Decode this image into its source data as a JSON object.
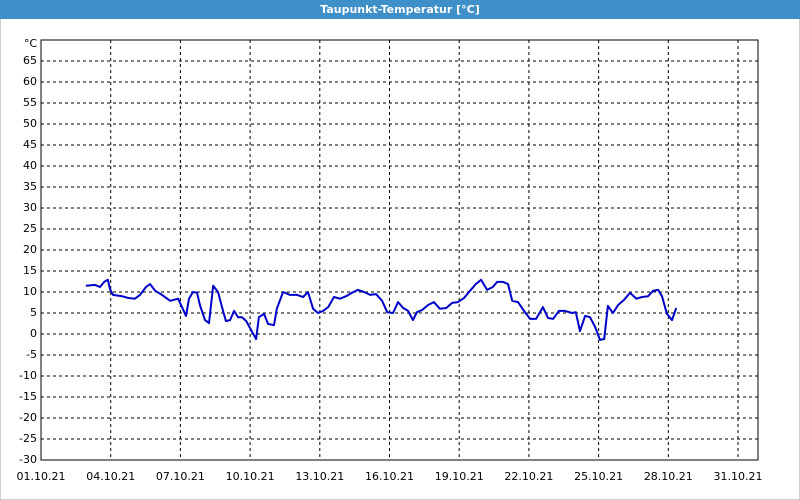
{
  "chart_data": {
    "type": "line",
    "title": "Taupunkt-Temperatur [°C]",
    "xlim": [
      1,
      31.86
    ],
    "ylim": [
      -30,
      70
    ],
    "xticks": [
      {
        "value": 1,
        "label": "01.10.21"
      },
      {
        "value": 4,
        "label": "04.10.21"
      },
      {
        "value": 7,
        "label": "07.10.21"
      },
      {
        "value": 10,
        "label": "10.10.21"
      },
      {
        "value": 13,
        "label": "13.10.21"
      },
      {
        "value": 16,
        "label": "16.10.21"
      },
      {
        "value": 19,
        "label": "19.10.21"
      },
      {
        "value": 22,
        "label": "22.10.21"
      },
      {
        "value": 25,
        "label": "25.10.21"
      },
      {
        "value": 28,
        "label": "28.10.21"
      },
      {
        "value": 31,
        "label": "31.10.21"
      }
    ],
    "yticks": [
      -30,
      -25,
      -20,
      -15,
      -10,
      -5,
      0,
      5,
      10,
      15,
      20,
      25,
      30,
      35,
      40,
      45,
      50,
      55,
      60,
      65,
      {
        "value": 70,
        "label": "°C"
      }
    ],
    "grid": true,
    "series": [
      {
        "name": "Taupunkt",
        "color": "#0000c8",
        "x": [
          2.93,
          3.33,
          3.54,
          3.72,
          3.88,
          3.97,
          4.1,
          4.49,
          4.74,
          5.04,
          5.26,
          5.52,
          5.69,
          5.91,
          6.21,
          6.56,
          6.9,
          7.07,
          7.24,
          7.37,
          7.54,
          7.72,
          7.84,
          8.06,
          8.23,
          8.41,
          8.62,
          8.79,
          8.96,
          9.14,
          9.31,
          9.48,
          9.65,
          9.83,
          10.04,
          10.26,
          10.38,
          10.6,
          10.77,
          11.03,
          11.15,
          11.42,
          11.72,
          12.02,
          12.28,
          12.49,
          12.71,
          12.92,
          13.14,
          13.36,
          13.61,
          13.87,
          14.13,
          14.38,
          14.64,
          14.9,
          15.17,
          15.42,
          15.68,
          15.9,
          16.15,
          16.37,
          16.59,
          16.8,
          17.01,
          17.18,
          17.4,
          17.66,
          17.91,
          18.17,
          18.44,
          18.7,
          18.95,
          19.21,
          19.47,
          19.72,
          19.94,
          20.2,
          20.45,
          20.63,
          20.89,
          21.1,
          21.28,
          21.53,
          21.79,
          22.05,
          22.31,
          22.6,
          22.82,
          23.04,
          23.29,
          23.55,
          23.86,
          24.02,
          24.2,
          24.42,
          24.63,
          24.85,
          25.06,
          25.24,
          25.4,
          25.62,
          25.84,
          26.09,
          26.35,
          26.62,
          26.87,
          27.13,
          27.35,
          27.56,
          27.73,
          27.94,
          28.16,
          28.34
        ],
        "values": [
          11.5,
          11.7,
          11.2,
          12.4,
          12.9,
          10.7,
          9.3,
          9,
          8.6,
          8.4,
          9.3,
          11.2,
          11.9,
          10.3,
          9.3,
          7.9,
          8.4,
          6.4,
          4.3,
          8.4,
          10,
          9.8,
          6.9,
          3.3,
          2.6,
          11.5,
          10,
          6.4,
          3.1,
          3.3,
          5.5,
          4,
          4,
          3.1,
          1,
          -1.2,
          4,
          4.8,
          2.4,
          2.1,
          6,
          10,
          9.3,
          9.3,
          8.8,
          10,
          6,
          5,
          5.5,
          6.4,
          8.8,
          8.4,
          9,
          9.8,
          10.5,
          10,
          9.3,
          9.5,
          7.9,
          5.2,
          5,
          7.6,
          6.2,
          5.5,
          3.3,
          5.2,
          5.7,
          6.9,
          7.6,
          6,
          6.2,
          7.4,
          7.6,
          8.6,
          10.3,
          11.9,
          12.9,
          10.5,
          11.2,
          12.4,
          12.4,
          11.9,
          7.9,
          7.6,
          5.5,
          3.6,
          3.6,
          6.4,
          3.8,
          3.6,
          5.5,
          5.5,
          5,
          5.2,
          0.7,
          4.3,
          4,
          1.7,
          -1.4,
          -1.2,
          6.7,
          5,
          6.9,
          8.1,
          9.8,
          8.4,
          8.8,
          9,
          10.3,
          10.5,
          9,
          4.8,
          3.3,
          6.2
        ]
      }
    ]
  }
}
